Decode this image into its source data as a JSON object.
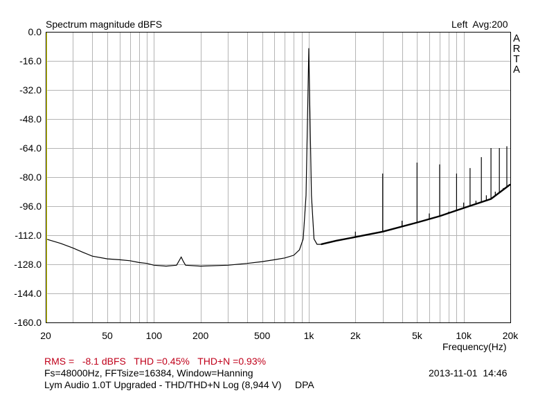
{
  "chart_data": {
    "type": "line",
    "title": "Spectrum magnitude dBFS",
    "channel_info": "Left  Avg:200",
    "brand_letters": [
      "A",
      "R",
      "T",
      "A"
    ],
    "xlabel": "Frequency(Hz)",
    "x_scale": "log",
    "xlim": [
      20,
      20000
    ],
    "ylim": [
      -160,
      0
    ],
    "grid": true,
    "x_ticks": [
      {
        "value": 20,
        "label": "20"
      },
      {
        "value": 50,
        "label": "50"
      },
      {
        "value": 100,
        "label": "100"
      },
      {
        "value": 200,
        "label": "200"
      },
      {
        "value": 500,
        "label": "500"
      },
      {
        "value": 1000,
        "label": "1k"
      },
      {
        "value": 2000,
        "label": "2k"
      },
      {
        "value": 5000,
        "label": "5k"
      },
      {
        "value": 10000,
        "label": "10k"
      },
      {
        "value": 20000,
        "label": "20k"
      }
    ],
    "y_ticks": [
      {
        "value": 0,
        "label": "0.0"
      },
      {
        "value": -16,
        "label": "-16.0"
      },
      {
        "value": -32,
        "label": "-32.0"
      },
      {
        "value": -48,
        "label": "-48.0"
      },
      {
        "value": -64,
        "label": "-64.0"
      },
      {
        "value": -80,
        "label": "-80.0"
      },
      {
        "value": -96,
        "label": "-96.0"
      },
      {
        "value": -112,
        "label": "-112.0"
      },
      {
        "value": -128,
        "label": "-128.0"
      },
      {
        "value": -144,
        "label": "-144.0"
      },
      {
        "value": -160,
        "label": "-160.0"
      }
    ],
    "series": [
      {
        "noise_floor": [
          [
            20,
            -114
          ],
          [
            25,
            -116.5
          ],
          [
            30,
            -119
          ],
          [
            35,
            -121.5
          ],
          [
            40,
            -123.5
          ],
          [
            50,
            -125
          ],
          [
            60,
            -125.5
          ],
          [
            70,
            -126
          ],
          [
            80,
            -127
          ],
          [
            90,
            -127.5
          ],
          [
            100,
            -128.5
          ],
          [
            120,
            -129
          ],
          [
            140,
            -128.5
          ],
          [
            150,
            -124
          ],
          [
            155,
            -126.5
          ],
          [
            160,
            -128.5
          ],
          [
            200,
            -129
          ],
          [
            300,
            -128.5
          ],
          [
            400,
            -127.5
          ],
          [
            500,
            -126.5
          ],
          [
            600,
            -125.5
          ],
          [
            700,
            -124.5
          ],
          [
            800,
            -123
          ],
          [
            870,
            -120
          ],
          [
            920,
            -114
          ],
          [
            960,
            -90
          ],
          [
            985,
            -40
          ],
          [
            1000,
            -9
          ],
          [
            1015,
            -40
          ],
          [
            1040,
            -90
          ],
          [
            1080,
            -114
          ],
          [
            1130,
            -117
          ],
          [
            1200,
            -117
          ],
          [
            1500,
            -115
          ],
          [
            2000,
            -113
          ],
          [
            3000,
            -110
          ],
          [
            5000,
            -105
          ],
          [
            7000,
            -101.5
          ],
          [
            10000,
            -97
          ],
          [
            15000,
            -92
          ],
          [
            20000,
            -84
          ]
        ],
        "harmonics": [
          {
            "freq": 2000,
            "db": -110
          },
          {
            "freq": 3000,
            "db": -78
          },
          {
            "freq": 4000,
            "db": -104
          },
          {
            "freq": 5000,
            "db": -72
          },
          {
            "freq": 6000,
            "db": -100
          },
          {
            "freq": 7000,
            "db": -73
          },
          {
            "freq": 8000,
            "db": -99
          },
          {
            "freq": 9000,
            "db": -78
          },
          {
            "freq": 10000,
            "db": -94
          },
          {
            "freq": 11000,
            "db": -75
          },
          {
            "freq": 12000,
            "db": -93
          },
          {
            "freq": 13000,
            "db": -69
          },
          {
            "freq": 14000,
            "db": -90
          },
          {
            "freq": 15000,
            "db": -64
          },
          {
            "freq": 16000,
            "db": -88
          },
          {
            "freq": 17000,
            "db": -64
          },
          {
            "freq": 18000,
            "db": -86
          },
          {
            "freq": 19000,
            "db": -63
          }
        ]
      }
    ]
  },
  "footer": {
    "stats_rms": "RMS =   -8.1 dBFS   THD =0.45%   THD+N =0.93%",
    "settings": "Fs=48000Hz, FFTsize=16384, Window=Hanning",
    "timestamp": "2013-11-01  14:46",
    "description": "Lym Audio 1.0T Upgraded - THD/THD+N Log (8,944 V)     DPA"
  },
  "colors": {
    "background": "#ffffff",
    "grid": "#b4b4b4",
    "trace": "#000000",
    "axis": "#000000",
    "left_edge": "#ffff00",
    "stats_text": "#c0001a"
  }
}
